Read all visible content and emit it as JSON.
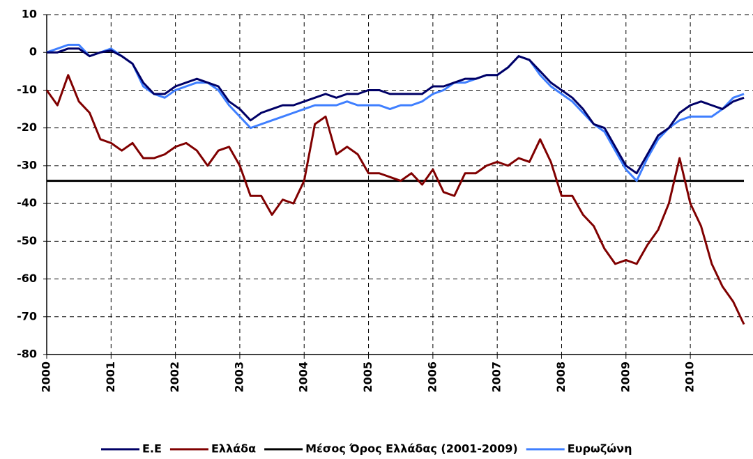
{
  "chart_data": {
    "type": "line",
    "categories": [
      "2000",
      null,
      null,
      null,
      null,
      null,
      "2001",
      null,
      null,
      null,
      null,
      null,
      "2002",
      null,
      null,
      null,
      null,
      null,
      "2003",
      null,
      null,
      null,
      null,
      null,
      "2004",
      null,
      null,
      null,
      null,
      null,
      "2005",
      null,
      null,
      null,
      null,
      null,
      "2006",
      null,
      null,
      null,
      null,
      null,
      "2007",
      null,
      null,
      null,
      null,
      null,
      "2008",
      null,
      null,
      null,
      null,
      null,
      "2009",
      null,
      null,
      null,
      null,
      null,
      "2010",
      null,
      null,
      null,
      null,
      null
    ],
    "ylim": [
      -80,
      10
    ],
    "yticks": [
      -80,
      -70,
      -60,
      -50,
      -40,
      -30,
      -20,
      -10,
      0,
      10
    ],
    "grid": true,
    "legend": "bottom",
    "series": [
      {
        "name": "Ε.Ε",
        "color": "#000066",
        "values": [
          0,
          0,
          1,
          1,
          -1,
          0,
          0.5,
          -1,
          -3,
          -8,
          -11,
          -11,
          -9,
          -8,
          -7,
          -8,
          -9,
          -13,
          -15,
          -18,
          -16,
          -15,
          -14,
          -14,
          -13,
          -12,
          -11,
          -12,
          -11,
          -11,
          -10,
          -10,
          -11,
          -11,
          -11,
          -11,
          -9,
          -9,
          -8,
          -7,
          -7,
          -6,
          -6,
          -4,
          -1,
          -2,
          -5,
          -8,
          -10,
          -12,
          -15,
          -19,
          -20,
          -25,
          -30,
          -32,
          -27,
          -22,
          -20,
          -16,
          -14,
          -13,
          -14,
          -15,
          -13,
          -12
        ]
      },
      {
        "name": "Ελλάδα",
        "color": "#800000",
        "values": [
          -10,
          -14,
          -6,
          -13,
          -16,
          -23,
          -24,
          -26,
          -24,
          -28,
          -28,
          -27,
          -25,
          -24,
          -26,
          -30,
          -26,
          -25,
          -30,
          -38,
          -38,
          -43,
          -39,
          -40,
          -34,
          -19,
          -17,
          -27,
          -25,
          -27,
          -32,
          -32,
          -33,
          -34,
          -32,
          -35,
          -31,
          -37,
          -38,
          -32,
          -32,
          -30,
          -29,
          -30,
          -28,
          -29,
          -23,
          -29,
          -38,
          -38,
          -43,
          -46,
          -52,
          -56,
          -55,
          -56,
          -51,
          -47,
          -40,
          -28,
          -40,
          -46,
          -56,
          -62,
          -66,
          -72
        ]
      },
      {
        "name": "Μέσος Όρος Ελλάδας (2001-2009)",
        "color": "#000000",
        "values": [
          -34,
          -34,
          -34,
          -34,
          -34,
          -34,
          -34,
          -34,
          -34,
          -34,
          -34,
          -34,
          -34,
          -34,
          -34,
          -34,
          -34,
          -34,
          -34,
          -34,
          -34,
          -34,
          -34,
          -34,
          -34,
          -34,
          -34,
          -34,
          -34,
          -34,
          -34,
          -34,
          -34,
          -34,
          -34,
          -34,
          -34,
          -34,
          -34,
          -34,
          -34,
          -34,
          -34,
          -34,
          -34,
          -34,
          -34,
          -34,
          -34,
          -34,
          -34,
          -34,
          -34,
          -34,
          -34,
          -34,
          -34,
          -34,
          -34,
          -34,
          -34,
          -34,
          -34,
          -34,
          -34,
          -34
        ]
      },
      {
        "name": "Ευρωζώνη",
        "color": "#3f7fff",
        "values": [
          0,
          1,
          2,
          2,
          -1,
          0,
          1,
          -1,
          -3,
          -9,
          -11,
          -12,
          -10,
          -9,
          -8,
          -8,
          -10,
          -14,
          -17,
          -20,
          -19,
          -18,
          -17,
          -16,
          -15,
          -14,
          -14,
          -14,
          -13,
          -14,
          -14,
          -14,
          -15,
          -14,
          -14,
          -13,
          -11,
          -10,
          -8,
          -8,
          -7,
          -6,
          -6,
          -4,
          -1,
          -2,
          -6,
          -9,
          -11,
          -13,
          -16,
          -19,
          -21,
          -26,
          -31,
          -34,
          -28,
          -23,
          -20,
          -18,
          -17,
          -17,
          -17,
          -15,
          -12,
          -11
        ]
      }
    ]
  }
}
